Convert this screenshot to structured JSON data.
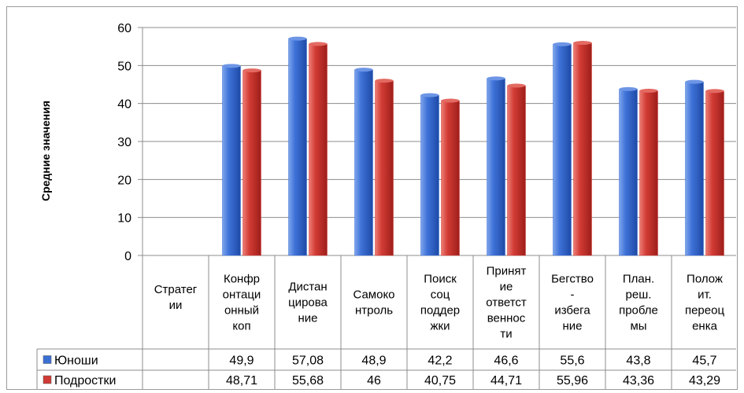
{
  "chart_data": {
    "type": "bar",
    "ylabel": "Средние значения",
    "ylim": [
      0,
      60
    ],
    "yticks": [
      0,
      10,
      20,
      30,
      40,
      50,
      60
    ],
    "grid": true,
    "legend": "data-table-left",
    "table_header": "Стратегии",
    "categories": [
      "Конфронтационный коп",
      "Дистанцирование",
      "Самоконтроль",
      "Поиск соц поддержки",
      "Принятие ответственности",
      "Бегство - избегание",
      "План. реш. проблемы",
      "Положит. переоценка"
    ],
    "category_lines": [
      [
        "Конфр",
        "онтаци",
        "онный",
        "коп"
      ],
      [
        "Дистан",
        "циров а",
        "ние"
      ],
      [
        "Самоко",
        "нтроль"
      ],
      [
        "Поиск",
        "соц",
        "поддер",
        "жки"
      ],
      [
        "Принят",
        "ие",
        "ответст",
        "веннос",
        "ти"
      ],
      [
        "Бегство",
        "-",
        "избега",
        "ние"
      ],
      [
        "План.",
        "реш.",
        "пробле",
        "мы"
      ],
      [
        "Полож",
        "ит.",
        "переоц",
        "енка"
      ]
    ],
    "series": [
      {
        "name": "Юноши",
        "color": "#3b6fd4",
        "values": [
          49.9,
          57.08,
          48.9,
          42.2,
          46.6,
          55.6,
          43.8,
          45.7
        ],
        "labels": [
          "49,9",
          "57,08",
          "48,9",
          "42,2",
          "46,6",
          "55,6",
          "43,8",
          "45,7"
        ]
      },
      {
        "name": "Подростки",
        "color": "#d03a34",
        "values": [
          48.71,
          55.68,
          46,
          40.75,
          44.71,
          55.96,
          43.36,
          43.29
        ],
        "labels": [
          "48,71",
          "55,68",
          "46",
          "40,75",
          "44,71",
          "55,96",
          "43,36",
          "43,29"
        ]
      }
    ]
  }
}
